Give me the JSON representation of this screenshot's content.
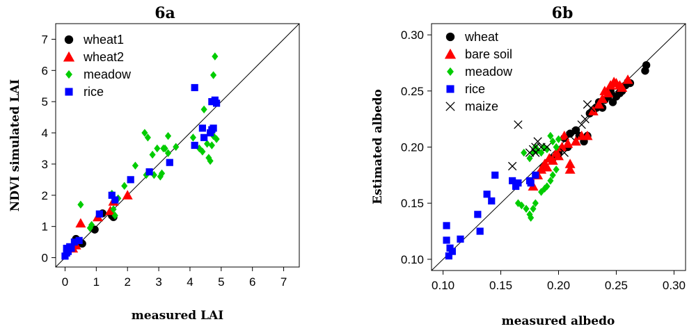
{
  "chart_data": [
    {
      "type": "scatter",
      "title": "6a",
      "xlabel": "measured LAI",
      "ylabel": "NDVI simulated LAI",
      "xlim": [
        -0.3,
        7.5
      ],
      "ylim": [
        -0.3,
        7.5
      ],
      "xticks": [
        "0",
        "1",
        "2",
        "3",
        "4",
        "5",
        "6",
        "7"
      ],
      "yticks": [
        "0",
        "1",
        "2",
        "3",
        "4",
        "5",
        "6",
        "7"
      ],
      "xtick_values": [
        0,
        1,
        2,
        3,
        4,
        5,
        6,
        7
      ],
      "ytick_values": [
        0,
        1,
        2,
        3,
        4,
        5,
        6,
        7
      ],
      "reference_line": "1:1",
      "legend_position": "top-left",
      "series": [
        {
          "name": "wheat1",
          "marker": "circle",
          "color": "#000000",
          "points": [
            [
              0.35,
              0.6
            ],
            [
              0.55,
              0.45
            ],
            [
              0.95,
              0.9
            ],
            [
              1.2,
              1.42
            ],
            [
              1.55,
              1.3
            ],
            [
              1.5,
              1.35
            ]
          ]
        },
        {
          "name": "wheat2",
          "marker": "triangle",
          "color": "#ff0000",
          "points": [
            [
              0.25,
              0.3
            ],
            [
              0.35,
              0.4
            ],
            [
              0.5,
              1.1
            ],
            [
              1.05,
              1.3
            ],
            [
              1.45,
              1.5
            ],
            [
              1.55,
              1.8
            ],
            [
              2.0,
              2.0
            ]
          ]
        },
        {
          "name": "meadow",
          "marker": "diamond",
          "color": "#00cc00",
          "points": [
            [
              0.5,
              1.7
            ],
            [
              0.8,
              0.95
            ],
            [
              0.85,
              1.05
            ],
            [
              1.5,
              2.05
            ],
            [
              1.55,
              1.55
            ],
            [
              1.6,
              1.35
            ],
            [
              1.7,
              1.9
            ],
            [
              1.9,
              2.3
            ],
            [
              2.25,
              2.95
            ],
            [
              2.55,
              4.0
            ],
            [
              2.65,
              3.85
            ],
            [
              2.6,
              2.65
            ],
            [
              2.8,
              3.3
            ],
            [
              2.85,
              2.65
            ],
            [
              2.95,
              3.5
            ],
            [
              3.05,
              2.6
            ],
            [
              3.1,
              2.7
            ],
            [
              3.15,
              3.5
            ],
            [
              3.2,
              3.5
            ],
            [
              3.3,
              3.35
            ],
            [
              3.3,
              3.9
            ],
            [
              3.55,
              3.55
            ],
            [
              4.1,
              3.85
            ],
            [
              4.3,
              3.5
            ],
            [
              4.4,
              3.4
            ],
            [
              4.45,
              4.75
            ],
            [
              4.55,
              3.65
            ],
            [
              4.6,
              3.2
            ],
            [
              4.65,
              3.1
            ],
            [
              4.7,
              3.6
            ],
            [
              4.75,
              3.9
            ],
            [
              4.75,
              5.85
            ],
            [
              4.8,
              6.45
            ],
            [
              4.85,
              3.8
            ]
          ]
        },
        {
          "name": "rice",
          "marker": "square",
          "color": "#0000ff",
          "points": [
            [
              0.0,
              0.05
            ],
            [
              0.05,
              0.15
            ],
            [
              0.05,
              0.3
            ],
            [
              0.1,
              0.2
            ],
            [
              0.15,
              0.35
            ],
            [
              0.2,
              0.3
            ],
            [
              0.3,
              0.5
            ],
            [
              0.45,
              0.55
            ],
            [
              1.1,
              1.4
            ],
            [
              1.5,
              2.0
            ],
            [
              1.6,
              1.85
            ],
            [
              2.1,
              2.5
            ],
            [
              2.7,
              2.75
            ],
            [
              3.35,
              3.05
            ],
            [
              4.15,
              5.45
            ],
            [
              4.15,
              3.6
            ],
            [
              4.4,
              4.15
            ],
            [
              4.45,
              3.85
            ],
            [
              4.65,
              4.0
            ],
            [
              4.7,
              4.1
            ],
            [
              4.75,
              4.15
            ],
            [
              4.7,
              5.0
            ],
            [
              4.8,
              5.05
            ],
            [
              4.85,
              4.95
            ]
          ]
        }
      ]
    },
    {
      "type": "scatter",
      "title": "6b",
      "xlabel": "measured albedo",
      "ylabel": "Estimated albedo",
      "xlim": [
        0.09,
        0.31
      ],
      "ylim": [
        0.09,
        0.31
      ],
      "xticks": [
        "0.10",
        "0.15",
        "0.20",
        "0.25",
        "0.30"
      ],
      "yticks": [
        "0.10",
        "0.15",
        "0.20",
        "0.25",
        "0.30"
      ],
      "xtick_values": [
        0.1,
        0.15,
        0.2,
        0.25,
        0.3
      ],
      "ytick_values": [
        0.1,
        0.15,
        0.2,
        0.25,
        0.3
      ],
      "reference_line": "1:1",
      "legend_position": "top-left",
      "series": [
        {
          "name": "wheat",
          "marker": "circle",
          "color": "#000000",
          "points": [
            [
              0.187,
              0.182
            ],
            [
              0.195,
              0.19
            ],
            [
              0.2,
              0.195
            ],
            [
              0.205,
              0.208
            ],
            [
              0.208,
              0.2
            ],
            [
              0.21,
              0.212
            ],
            [
              0.215,
              0.215
            ],
            [
              0.218,
              0.21
            ],
            [
              0.222,
              0.205
            ],
            [
              0.225,
              0.21
            ],
            [
              0.227,
              0.23
            ],
            [
              0.23,
              0.232
            ],
            [
              0.233,
              0.235
            ],
            [
              0.235,
              0.24
            ],
            [
              0.238,
              0.235
            ],
            [
              0.24,
              0.242
            ],
            [
              0.243,
              0.245
            ],
            [
              0.245,
              0.25
            ],
            [
              0.247,
              0.24
            ],
            [
              0.25,
              0.245
            ],
            [
              0.253,
              0.248
            ],
            [
              0.255,
              0.25
            ],
            [
              0.258,
              0.255
            ],
            [
              0.26,
              0.258
            ],
            [
              0.262,
              0.257
            ],
            [
              0.275,
              0.268
            ],
            [
              0.276,
              0.273
            ]
          ]
        },
        {
          "name": "bare soil",
          "marker": "triangle",
          "color": "#ff0000",
          "points": [
            [
              0.178,
              0.165
            ],
            [
              0.182,
              0.175
            ],
            [
              0.185,
              0.18
            ],
            [
              0.188,
              0.185
            ],
            [
              0.19,
              0.182
            ],
            [
              0.192,
              0.19
            ],
            [
              0.195,
              0.188
            ],
            [
              0.198,
              0.195
            ],
            [
              0.2,
              0.192
            ],
            [
              0.203,
              0.2
            ],
            [
              0.205,
              0.21
            ],
            [
              0.208,
              0.203
            ],
            [
              0.21,
              0.18
            ],
            [
              0.21,
              0.185
            ],
            [
              0.215,
              0.205
            ],
            [
              0.22,
              0.21
            ],
            [
              0.225,
              0.21
            ],
            [
              0.23,
              0.232
            ],
            [
              0.235,
              0.238
            ],
            [
              0.238,
              0.243
            ],
            [
              0.24,
              0.25
            ],
            [
              0.243,
              0.248
            ],
            [
              0.245,
              0.255
            ],
            [
              0.248,
              0.258
            ],
            [
              0.25,
              0.257
            ],
            [
              0.253,
              0.255
            ],
            [
              0.255,
              0.253
            ],
            [
              0.26,
              0.26
            ]
          ]
        },
        {
          "name": "meadow",
          "marker": "diamond",
          "color": "#00cc00",
          "points": [
            [
              0.165,
              0.15
            ],
            [
              0.168,
              0.148
            ],
            [
              0.172,
              0.145
            ],
            [
              0.175,
              0.14
            ],
            [
              0.176,
              0.137
            ],
            [
              0.178,
              0.145
            ],
            [
              0.18,
              0.15
            ],
            [
              0.185,
              0.16
            ],
            [
              0.188,
              0.163
            ],
            [
              0.19,
              0.165
            ],
            [
              0.193,
              0.17
            ],
            [
              0.195,
              0.175
            ],
            [
              0.198,
              0.18
            ],
            [
              0.17,
              0.195
            ],
            [
              0.175,
              0.19
            ],
            [
              0.178,
              0.195
            ],
            [
              0.18,
              0.2
            ],
            [
              0.182,
              0.197
            ],
            [
              0.185,
              0.195
            ],
            [
              0.187,
              0.2
            ],
            [
              0.19,
              0.198
            ],
            [
              0.193,
              0.21
            ],
            [
              0.195,
              0.205
            ],
            [
              0.198,
              0.2
            ],
            [
              0.2,
              0.207
            ]
          ]
        },
        {
          "name": "rice",
          "marker": "square",
          "color": "#0000ff",
          "points": [
            [
              0.103,
              0.13
            ],
            [
              0.103,
              0.117
            ],
            [
              0.105,
              0.103
            ],
            [
              0.106,
              0.11
            ],
            [
              0.108,
              0.107
            ],
            [
              0.115,
              0.118
            ],
            [
              0.13,
              0.14
            ],
            [
              0.132,
              0.125
            ],
            [
              0.138,
              0.158
            ],
            [
              0.142,
              0.152
            ],
            [
              0.145,
              0.175
            ],
            [
              0.16,
              0.17
            ],
            [
              0.163,
              0.165
            ],
            [
              0.165,
              0.168
            ],
            [
              0.175,
              0.17
            ],
            [
              0.176,
              0.168
            ],
            [
              0.18,
              0.175
            ]
          ]
        },
        {
          "name": "maize",
          "marker": "cross",
          "color": "#000000",
          "points": [
            [
              0.16,
              0.183
            ],
            [
              0.165,
              0.22
            ],
            [
              0.175,
              0.195
            ],
            [
              0.178,
              0.198
            ],
            [
              0.18,
              0.2
            ],
            [
              0.18,
              0.195
            ],
            [
              0.182,
              0.205
            ],
            [
              0.185,
              0.2
            ],
            [
              0.19,
              0.2
            ],
            [
              0.205,
              0.195
            ],
            [
              0.21,
              0.21
            ],
            [
              0.215,
              0.213
            ],
            [
              0.22,
              0.22
            ],
            [
              0.223,
              0.225
            ],
            [
              0.225,
              0.238
            ],
            [
              0.228,
              0.235
            ]
          ]
        }
      ]
    }
  ]
}
